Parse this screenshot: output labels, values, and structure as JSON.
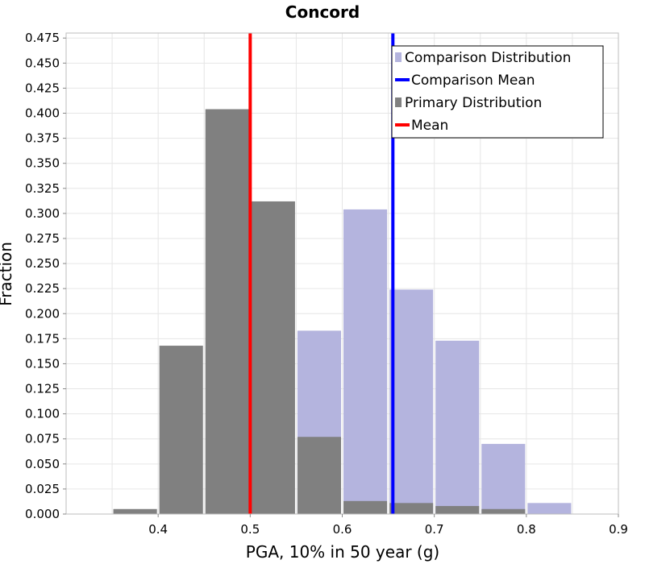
{
  "chart_data": {
    "type": "bar",
    "title": "Concord",
    "xlabel": "PGA, 10% in 50 year (g)",
    "ylabel": "Fraction",
    "xlim": [
      0.3,
      0.9
    ],
    "ylim": [
      0,
      0.48
    ],
    "x_ticks": [
      0.4,
      0.5,
      0.6,
      0.7,
      0.8,
      0.9
    ],
    "x_tick_labels": [
      "0.4",
      "0.5",
      "0.6",
      "0.7",
      "0.8",
      "0.9"
    ],
    "y_ticks": [
      0,
      0.025,
      0.05,
      0.075,
      0.1,
      0.125,
      0.15,
      0.175,
      0.2,
      0.225,
      0.25,
      0.275,
      0.3,
      0.325,
      0.35,
      0.375,
      0.4,
      0.425,
      0.45,
      0.475
    ],
    "y_tick_labels": [
      "0.000",
      "0.025",
      "0.050",
      "0.075",
      "0.100",
      "0.125",
      "0.150",
      "0.175",
      "0.200",
      "0.225",
      "0.250",
      "0.275",
      "0.300",
      "0.325",
      "0.350",
      "0.375",
      "0.400",
      "0.425",
      "0.450",
      "0.475"
    ],
    "bin_width": 0.05,
    "grid": true,
    "legend_position": "top-right",
    "series": [
      {
        "name": "Comparison Distribution",
        "kind": "histogram",
        "color": "#b4b4de",
        "bins": [
          {
            "start": 0.55,
            "value": 0.183
          },
          {
            "start": 0.6,
            "value": 0.304
          },
          {
            "start": 0.65,
            "value": 0.224
          },
          {
            "start": 0.7,
            "value": 0.173
          },
          {
            "start": 0.75,
            "value": 0.07
          },
          {
            "start": 0.8,
            "value": 0.011
          }
        ]
      },
      {
        "name": "Primary Distribution",
        "kind": "histogram",
        "color": "#808080",
        "bins": [
          {
            "start": 0.35,
            "value": 0.005
          },
          {
            "start": 0.4,
            "value": 0.168
          },
          {
            "start": 0.45,
            "value": 0.404
          },
          {
            "start": 0.5,
            "value": 0.312
          },
          {
            "start": 0.55,
            "value": 0.077
          },
          {
            "start": 0.6,
            "value": 0.013
          },
          {
            "start": 0.65,
            "value": 0.011
          },
          {
            "start": 0.7,
            "value": 0.008
          },
          {
            "start": 0.75,
            "value": 0.005
          }
        ]
      },
      {
        "name": "Comparison Mean",
        "kind": "vline",
        "color": "#0000ff",
        "x": 0.655
      },
      {
        "name": "Mean",
        "kind": "vline",
        "color": "#ff0000",
        "x": 0.5
      }
    ],
    "legend": [
      {
        "label": "Comparison Distribution",
        "color": "#b4b4de",
        "style": "box"
      },
      {
        "label": "Comparison Mean",
        "color": "#0000ff",
        "style": "line"
      },
      {
        "label": "Primary Distribution",
        "color": "#808080",
        "style": "box"
      },
      {
        "label": "Mean",
        "color": "#ff0000",
        "style": "line"
      }
    ]
  }
}
